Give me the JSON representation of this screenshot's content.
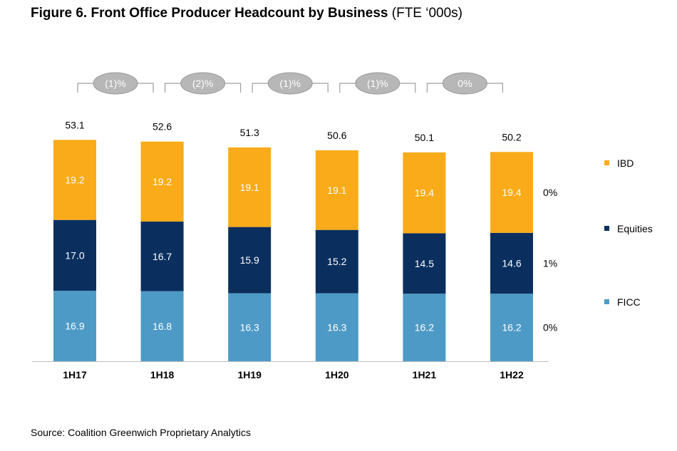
{
  "title": "Figure 6. Front Office Producer Headcount by Business",
  "subtitle": "(FTE ‘000s)",
  "source": "Source: Coalition Greenwich Proprietary Analytics",
  "chart_data": {
    "type": "bar",
    "stacked": true,
    "categories": [
      "1H17",
      "1H18",
      "1H19",
      "1H20",
      "1H21",
      "1H22"
    ],
    "series": [
      {
        "name": "FICC",
        "color": "#4e9ac6",
        "values": [
          16.9,
          16.8,
          16.3,
          16.3,
          16.2,
          16.2
        ],
        "labels": [
          "16.9",
          "16.8",
          "16.3",
          "16.3",
          "16.2",
          "16.2"
        ]
      },
      {
        "name": "Equities",
        "color": "#0a2f5f",
        "values": [
          17.0,
          16.7,
          15.9,
          15.2,
          14.5,
          14.6
        ],
        "labels": [
          "17.0",
          "16.7",
          "15.9",
          "15.2",
          "14.5",
          "14.6"
        ]
      },
      {
        "name": "IBD",
        "color": "#f9ab19",
        "values": [
          19.2,
          19.2,
          19.1,
          19.1,
          19.4,
          19.4
        ],
        "labels": [
          "19.2",
          "19.2",
          "19.1",
          "19.1",
          "19.4",
          "19.4"
        ]
      }
    ],
    "totals": [
      "53.1",
      "52.6",
      "51.3",
      "50.6",
      "50.1",
      "50.2"
    ],
    "yoy_changes": [
      "(1)%",
      "(2)%",
      "(1)%",
      "(1)%",
      "0%"
    ],
    "series_changes": {
      "IBD": "0%",
      "Equities": "1%",
      "FICC": "0%"
    },
    "legend": [
      "IBD",
      "Equities",
      "FICC"
    ],
    "legend_position": "right",
    "grid": false,
    "ylim": [
      0,
      60
    ]
  }
}
